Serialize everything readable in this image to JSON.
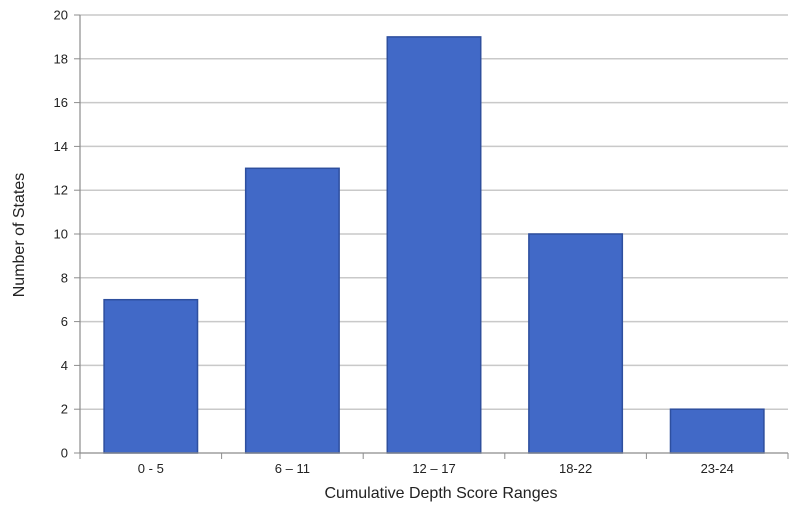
{
  "chart_data": {
    "type": "bar",
    "title": "",
    "xlabel": "Cumulative Depth Score Ranges",
    "ylabel": "Number of States",
    "categories": [
      "0 - 5",
      "6 – 11",
      "12 – 17",
      "18-22",
      "23-24"
    ],
    "values": [
      7,
      13,
      19,
      10,
      2
    ],
    "ylim": [
      0,
      20
    ],
    "yticks": [
      "0",
      "2",
      "4",
      "6",
      "8",
      "10",
      "12",
      "14",
      "16",
      "18",
      "20"
    ],
    "grid": true,
    "legend": "none",
    "colors": {
      "bar_fill": "#4169C7",
      "bar_stroke": "#2E4F9E",
      "gridline": "#c9c9c9",
      "axis": "#8c8c8c"
    }
  }
}
